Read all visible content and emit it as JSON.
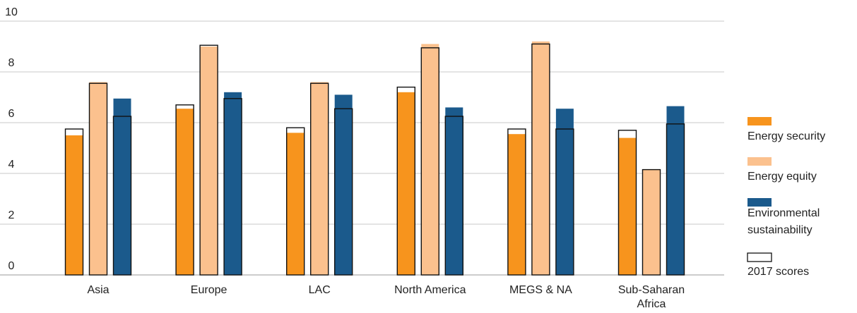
{
  "chart_data": {
    "type": "bar",
    "categories": [
      [
        "Asia"
      ],
      [
        "Europe"
      ],
      [
        "LAC"
      ],
      [
        "North America"
      ],
      [
        "MEGS & NA"
      ],
      [
        "Sub-Saharan",
        "Africa"
      ]
    ],
    "series": [
      {
        "name": "Energy security",
        "color": "#F7941D",
        "values": [
          5.5,
          6.55,
          5.6,
          7.2,
          5.55,
          5.4
        ]
      },
      {
        "name": "Energy equity",
        "color": "#FBC18E",
        "values": [
          7.6,
          9.0,
          7.6,
          9.1,
          9.2,
          4.15
        ]
      },
      {
        "name": "Environmental sustainability",
        "color": "#1B5A8C",
        "values": [
          6.95,
          7.2,
          7.1,
          6.6,
          6.55,
          6.65
        ]
      }
    ],
    "scores_2017": {
      "name": "2017 scores",
      "values": [
        [
          5.75,
          7.55,
          6.25
        ],
        [
          6.7,
          9.05,
          6.95
        ],
        [
          5.8,
          7.55,
          6.55
        ],
        [
          7.4,
          8.95,
          6.25
        ],
        [
          5.75,
          9.1,
          5.75
        ],
        [
          5.7,
          4.15,
          5.95
        ]
      ]
    },
    "yticks": [
      "0",
      "2",
      "4",
      "6",
      "8",
      "10"
    ],
    "ylim": [
      0,
      10
    ],
    "grid": true,
    "legend_position": "right",
    "legend_labels": [
      [
        "Energy security"
      ],
      [
        "Energy equity"
      ],
      [
        "Environmental",
        "sustainability"
      ],
      [
        "2017 scores"
      ]
    ]
  }
}
